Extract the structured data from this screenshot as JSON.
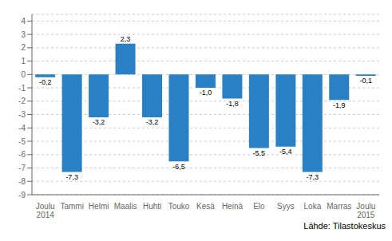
{
  "chart_data": {
    "type": "bar",
    "categories": [
      "Joulu\n2014",
      "Tammi",
      "Helmi",
      "Maalis",
      "Huhti",
      "Touko",
      "Kesä",
      "Heinä",
      "Elo",
      "Syys",
      "Loka",
      "Marras",
      "Joulu\n2015"
    ],
    "values": [
      -0.2,
      -7.3,
      -3.2,
      2.3,
      -3.2,
      -6.5,
      -1.0,
      -1.8,
      -5.5,
      -5.4,
      -7.3,
      -1.9,
      -0.1
    ],
    "value_labels": [
      "-0,2",
      "-7,3",
      "-3,2",
      "2,3",
      "-3,2",
      "-6,5",
      "-1,0",
      "-1,8",
      "-5,5",
      "-5,4",
      "-7,3",
      "-1,9",
      "-0,1"
    ],
    "data_labels": true,
    "color": "#2980C4",
    "ylim": [
      -9,
      4.5
    ],
    "yticks": [
      -9,
      -8,
      -7,
      -6,
      -5,
      -4,
      -3,
      -2,
      -1,
      0,
      1,
      2,
      3,
      4
    ],
    "grid": true,
    "annotations": [
      "Lähde: Tilastokeskus"
    ]
  }
}
